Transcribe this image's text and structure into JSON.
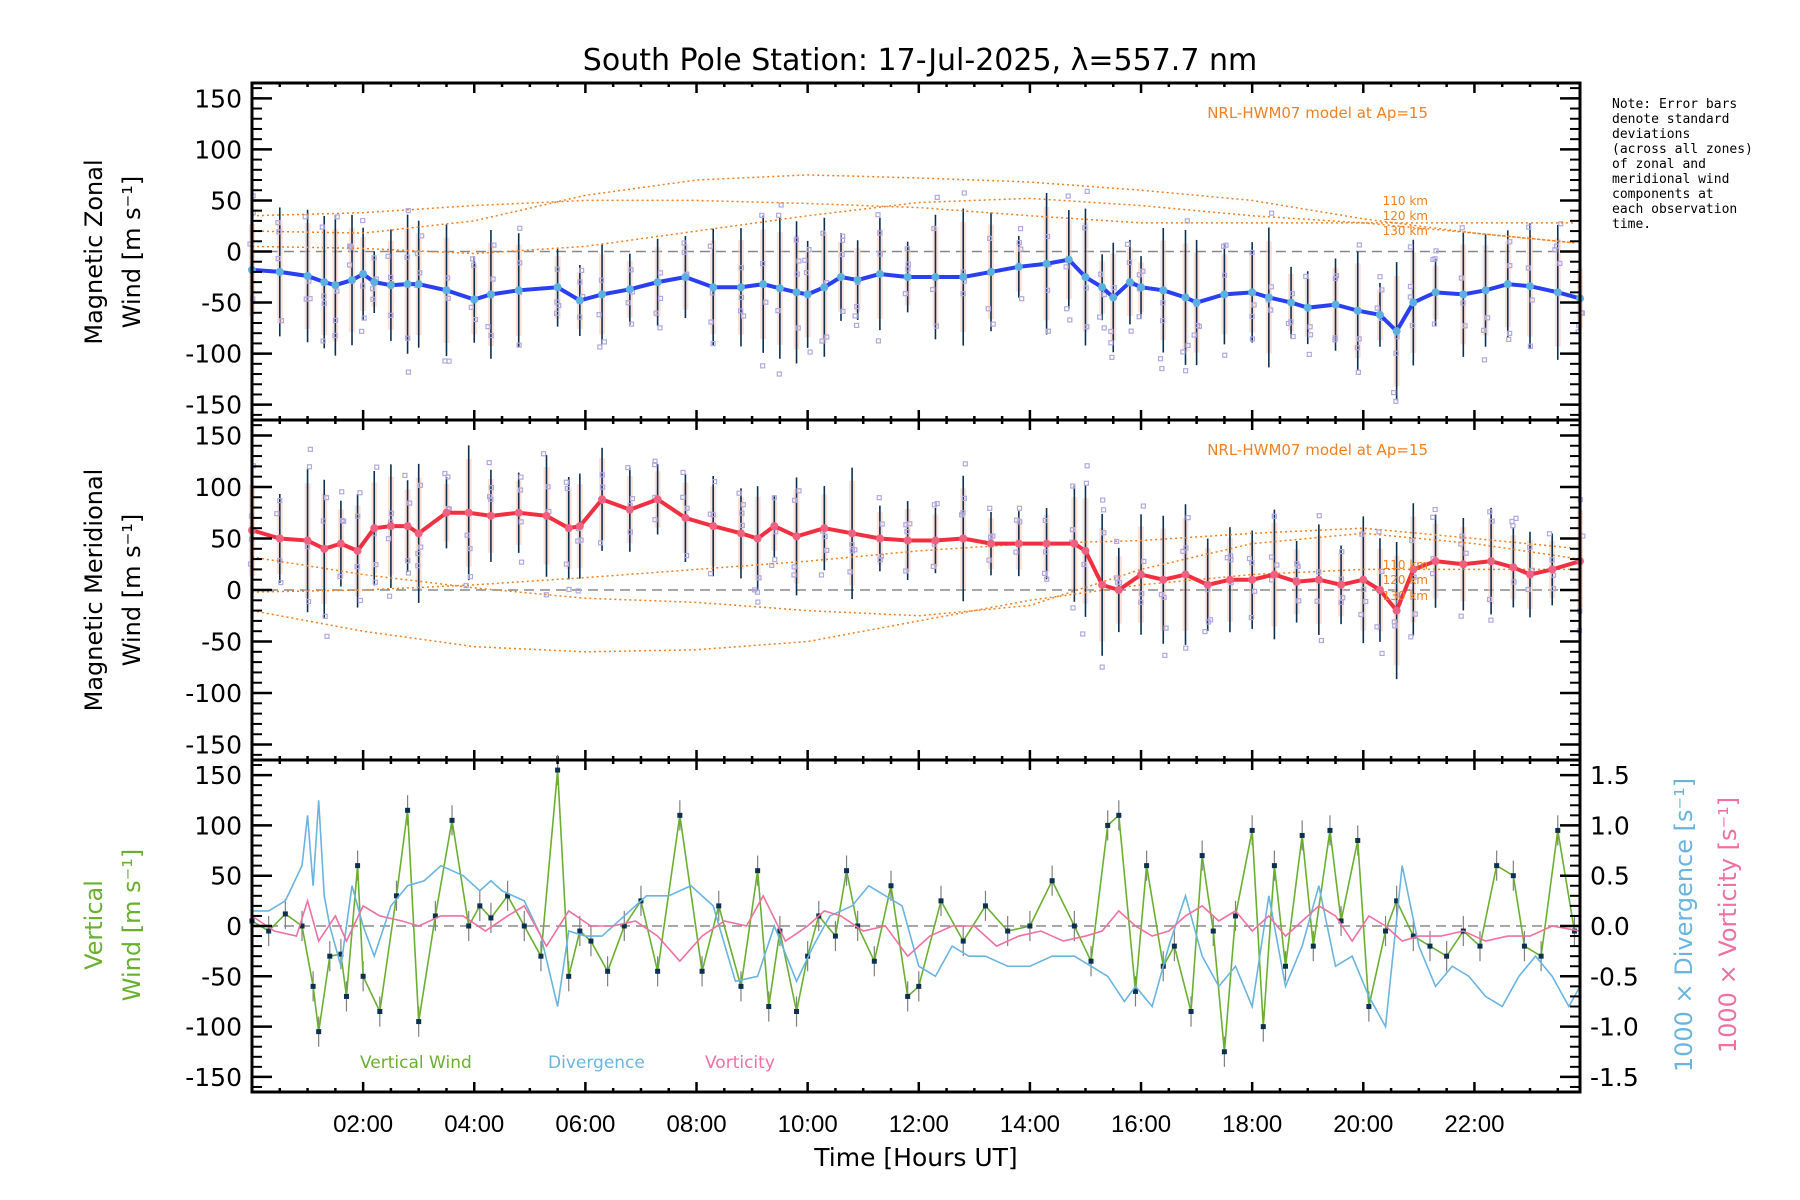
{
  "chart_data": [
    {
      "id": "zonal",
      "type": "line",
      "title": "South Pole Station: 17-Jul-2025, λ=557.7 nm",
      "ylabel_line1": "Magnetic Zonal",
      "ylabel_line2": "Wind [m s⁻¹]",
      "ylim": [
        -165,
        165
      ],
      "yticks": [
        -150,
        -100,
        -50,
        0,
        50,
        100,
        150
      ],
      "xlim": [
        0,
        23.9
      ],
      "annotation": "NRL-HWM07 model at Ap=15",
      "altitude_labels": [
        "110 km",
        "120 km",
        "130 km"
      ],
      "series": [
        {
          "name": "Mean zonal wind",
          "color": "#2a3ff0",
          "x": [
            0.0,
            0.5,
            1.0,
            1.3,
            1.5,
            1.8,
            2.0,
            2.2,
            2.5,
            2.8,
            3.0,
            3.5,
            4.0,
            4.3,
            4.8,
            5.5,
            5.9,
            6.3,
            6.8,
            7.3,
            7.8,
            8.3,
            8.8,
            9.2,
            9.5,
            9.8,
            10.0,
            10.3,
            10.6,
            10.9,
            11.3,
            11.8,
            12.3,
            12.8,
            13.3,
            13.8,
            14.3,
            14.7,
            15.0,
            15.3,
            15.5,
            15.8,
            16.0,
            16.4,
            16.8,
            17.0,
            17.5,
            18.0,
            18.3,
            18.7,
            19.0,
            19.5,
            19.9,
            20.3,
            20.6,
            20.9,
            21.3,
            21.8,
            22.2,
            22.6,
            23.0,
            23.5,
            23.9
          ],
          "y": [
            -18,
            -20,
            -24,
            -30,
            -33,
            -28,
            -22,
            -30,
            -33,
            -32,
            -32,
            -38,
            -47,
            -42,
            -38,
            -35,
            -48,
            -42,
            -37,
            -30,
            -25,
            -35,
            -35,
            -32,
            -36,
            -40,
            -42,
            -35,
            -25,
            -28,
            -22,
            -25,
            -25,
            -25,
            -20,
            -15,
            -12,
            -8,
            -25,
            -35,
            -45,
            -30,
            -35,
            -38,
            -45,
            -50,
            -42,
            -40,
            -45,
            -50,
            -55,
            -52,
            -58,
            -62,
            -78,
            -50,
            -40,
            -42,
            -38,
            -32,
            -34,
            -40,
            -46
          ]
        },
        {
          "name": "HWM07 110 km",
          "color": "#f08020",
          "x": [
            0,
            2,
            4,
            6,
            8,
            10,
            12,
            14,
            16,
            18,
            20,
            22,
            23.9
          ],
          "y": [
            35,
            38,
            45,
            50,
            50,
            47,
            43,
            35,
            28,
            28,
            28,
            28,
            28
          ]
        },
        {
          "name": "HWM07 120 km",
          "color": "#f08020",
          "x": [
            0,
            2,
            4,
            6,
            8,
            10,
            12,
            14,
            16,
            18,
            20,
            22,
            23.9
          ],
          "y": [
            20,
            18,
            30,
            55,
            70,
            75,
            72,
            68,
            60,
            50,
            32,
            18,
            8
          ]
        },
        {
          "name": "HWM07 130 km",
          "color": "#f08020",
          "x": [
            0,
            2,
            4,
            6,
            8,
            10,
            12,
            14,
            16,
            18,
            20,
            22,
            23.9
          ],
          "y": [
            5,
            3,
            -2,
            5,
            20,
            35,
            48,
            52,
            45,
            35,
            28,
            18,
            8
          ]
        }
      ]
    },
    {
      "id": "meridional",
      "type": "line",
      "ylabel_line1": "Magnetic Meridional",
      "ylabel_line2": "Wind [m s⁻¹]",
      "ylim": [
        -165,
        165
      ],
      "yticks": [
        -150,
        -100,
        -50,
        0,
        50,
        100,
        150
      ],
      "xlim": [
        0,
        23.9
      ],
      "annotation": "NRL-HWM07 model at Ap=15",
      "altitude_labels": [
        "110 km",
        "120 km",
        "130 km"
      ],
      "series": [
        {
          "name": "Mean meridional wind",
          "color": "#f03040",
          "x": [
            0.0,
            0.5,
            1.0,
            1.3,
            1.6,
            1.9,
            2.2,
            2.5,
            2.8,
            3.0,
            3.5,
            3.9,
            4.3,
            4.8,
            5.3,
            5.7,
            5.9,
            6.3,
            6.8,
            7.3,
            7.8,
            8.3,
            8.8,
            9.1,
            9.4,
            9.8,
            10.3,
            10.8,
            11.3,
            11.8,
            12.3,
            12.8,
            13.3,
            13.8,
            14.3,
            14.8,
            15.0,
            15.3,
            15.6,
            16.0,
            16.4,
            16.8,
            17.2,
            17.6,
            18.0,
            18.4,
            18.8,
            19.2,
            19.6,
            20.0,
            20.3,
            20.6,
            20.9,
            21.3,
            21.8,
            22.3,
            22.7,
            23.0,
            23.4,
            23.9
          ],
          "y": [
            58,
            50,
            48,
            40,
            45,
            38,
            60,
            62,
            62,
            55,
            75,
            75,
            72,
            75,
            72,
            60,
            62,
            88,
            78,
            88,
            70,
            62,
            55,
            50,
            62,
            52,
            60,
            55,
            50,
            48,
            48,
            50,
            45,
            45,
            45,
            45,
            38,
            5,
            0,
            15,
            10,
            15,
            5,
            10,
            10,
            15,
            8,
            10,
            5,
            10,
            0,
            -20,
            20,
            28,
            25,
            28,
            22,
            15,
            20,
            28
          ]
        },
        {
          "name": "HWM07 110 km",
          "color": "#f08020",
          "x": [
            0,
            2,
            4,
            6,
            8,
            10,
            12,
            14,
            16,
            18,
            20,
            22,
            23.9
          ],
          "y": [
            32,
            15,
            2,
            -8,
            -12,
            -20,
            -25,
            -15,
            20,
            45,
            55,
            45,
            30
          ]
        },
        {
          "name": "HWM07 120 km",
          "color": "#f08020",
          "x": [
            0,
            2,
            4,
            6,
            8,
            10,
            12,
            14,
            16,
            18,
            20,
            22,
            23.9
          ],
          "y": [
            -2,
            0,
            5,
            12,
            20,
            28,
            38,
            45,
            48,
            55,
            60,
            50,
            40
          ]
        },
        {
          "name": "HWM07 130 km",
          "color": "#f08020",
          "x": [
            0,
            2,
            4,
            6,
            8,
            10,
            12,
            14,
            16,
            18,
            20,
            22,
            23.9
          ],
          "y": [
            -20,
            -40,
            -55,
            -60,
            -58,
            -50,
            -30,
            -10,
            5,
            15,
            20,
            20,
            20
          ]
        }
      ]
    },
    {
      "id": "vertical",
      "type": "line",
      "ylabel_line1": "Vertical",
      "ylabel_line2": "Wind [m s⁻¹]",
      "ylabel_right_1": "1000 × Divergence [s⁻¹]",
      "ylabel_right_2": "1000 × Vorticity [s⁻¹]",
      "ylim": [
        -165,
        165
      ],
      "yticks": [
        -150,
        -100,
        -50,
        0,
        50,
        100,
        150
      ],
      "ylim_right": [
        -1.65,
        1.65
      ],
      "yticks_right": [
        -1.5,
        -1.0,
        -0.5,
        0.0,
        0.5,
        1.0,
        1.5
      ],
      "xlim": [
        0,
        23.9
      ],
      "xticks": [
        "02:00",
        "04:00",
        "06:00",
        "08:00",
        "10:00",
        "12:00",
        "14:00",
        "16:00",
        "18:00",
        "20:00",
        "22:00"
      ],
      "xtick_values": [
        2,
        4,
        6,
        8,
        10,
        12,
        14,
        16,
        18,
        20,
        22
      ],
      "xlabel": "Time [Hours UT]",
      "legend": [
        "Vertical Wind",
        "Divergence",
        "Vorticity"
      ],
      "series": [
        {
          "name": "Vertical Wind",
          "color": "#6ab030",
          "axis": "left",
          "x": [
            0.0,
            0.3,
            0.6,
            0.9,
            1.1,
            1.2,
            1.4,
            1.6,
            1.7,
            1.9,
            2.0,
            2.3,
            2.6,
            2.8,
            3.0,
            3.3,
            3.6,
            3.9,
            4.1,
            4.3,
            4.6,
            4.9,
            5.2,
            5.5,
            5.7,
            5.9,
            6.1,
            6.4,
            6.7,
            7.0,
            7.3,
            7.7,
            8.1,
            8.4,
            8.8,
            9.1,
            9.3,
            9.5,
            9.8,
            10.0,
            10.2,
            10.5,
            10.7,
            10.9,
            11.2,
            11.5,
            11.8,
            12.0,
            12.4,
            12.8,
            13.2,
            13.6,
            14.0,
            14.4,
            14.8,
            15.1,
            15.4,
            15.6,
            15.9,
            16.1,
            16.4,
            16.6,
            16.9,
            17.1,
            17.3,
            17.5,
            17.7,
            18.0,
            18.2,
            18.4,
            18.6,
            18.9,
            19.1,
            19.4,
            19.6,
            19.9,
            20.1,
            20.4,
            20.6,
            20.9,
            21.2,
            21.5,
            21.8,
            22.1,
            22.4,
            22.7,
            22.9,
            23.2,
            23.5,
            23.8
          ],
          "y": [
            5,
            -5,
            12,
            0,
            -60,
            -105,
            -30,
            -28,
            -70,
            60,
            -50,
            -85,
            30,
            115,
            -95,
            10,
            105,
            0,
            20,
            8,
            30,
            0,
            -30,
            155,
            -50,
            -5,
            -15,
            -45,
            0,
            25,
            -45,
            110,
            -45,
            20,
            -60,
            55,
            -80,
            -5,
            -85,
            -30,
            10,
            -10,
            55,
            0,
            -35,
            40,
            -70,
            -60,
            25,
            -15,
            20,
            -5,
            0,
            45,
            0,
            -35,
            100,
            110,
            -65,
            60,
            -40,
            -20,
            -85,
            70,
            -5,
            -125,
            10,
            95,
            -100,
            60,
            -40,
            90,
            -20,
            95,
            5,
            85,
            -80,
            -5,
            25,
            -10,
            -20,
            -30,
            -5,
            -20,
            60,
            50,
            -20,
            -30,
            95,
            -5
          ]
        },
        {
          "name": "Divergence",
          "color": "#6ab4e0",
          "axis": "right",
          "x": [
            0.0,
            0.3,
            0.6,
            0.9,
            1.0,
            1.1,
            1.2,
            1.3,
            1.4,
            1.6,
            1.8,
            2.0,
            2.2,
            2.5,
            2.8,
            3.1,
            3.4,
            3.8,
            4.1,
            4.3,
            4.5,
            4.9,
            5.2,
            5.5,
            5.7,
            6.0,
            6.3,
            6.7,
            7.1,
            7.5,
            7.9,
            8.3,
            8.7,
            9.1,
            9.4,
            9.8,
            10.1,
            10.4,
            10.8,
            11.1,
            11.4,
            11.7,
            12.0,
            12.3,
            12.6,
            12.9,
            13.2,
            13.6,
            14.0,
            14.4,
            14.8,
            15.1,
            15.4,
            15.7,
            15.9,
            16.2,
            16.5,
            16.8,
            17.1,
            17.4,
            17.7,
            18.0,
            18.3,
            18.6,
            18.9,
            19.2,
            19.5,
            19.8,
            20.1,
            20.4,
            20.7,
            21.0,
            21.3,
            21.6,
            21.9,
            22.2,
            22.5,
            22.8,
            23.1,
            23.4,
            23.7,
            23.9
          ],
          "y": [
            0.15,
            0.15,
            0.25,
            0.6,
            1.1,
            0.4,
            1.25,
            0.3,
            0.0,
            -0.4,
            0.4,
            0.0,
            -0.3,
            0.2,
            0.4,
            0.45,
            0.6,
            0.5,
            0.35,
            0.45,
            0.35,
            0.25,
            -0.1,
            -0.8,
            -0.05,
            -0.1,
            -0.1,
            0.1,
            0.3,
            0.3,
            0.4,
            0.2,
            -0.55,
            -0.5,
            0.0,
            -0.55,
            -0.2,
            0.1,
            0.2,
            0.4,
            0.3,
            0.2,
            -0.4,
            -0.5,
            -0.2,
            -0.3,
            -0.3,
            -0.4,
            -0.4,
            -0.3,
            -0.3,
            -0.4,
            -0.5,
            -0.75,
            -0.6,
            -0.8,
            -0.2,
            0.3,
            -0.3,
            -0.6,
            -0.4,
            -0.8,
            0.3,
            -0.6,
            -0.2,
            0.4,
            -0.4,
            -0.3,
            -0.7,
            -1.0,
            0.6,
            -0.2,
            -0.6,
            -0.4,
            -0.5,
            -0.7,
            -0.8,
            -0.5,
            -0.3,
            -0.5,
            -0.8,
            -0.6
          ]
        },
        {
          "name": "Vorticity",
          "color": "#f070a0",
          "axis": "right",
          "x": [
            0.0,
            0.4,
            0.8,
            1.0,
            1.2,
            1.5,
            1.7,
            2.0,
            2.3,
            2.7,
            3.0,
            3.4,
            3.8,
            4.2,
            4.6,
            4.9,
            5.3,
            5.7,
            6.1,
            6.5,
            6.9,
            7.3,
            7.7,
            8.1,
            8.5,
            8.9,
            9.2,
            9.6,
            10.0,
            10.3,
            10.6,
            11.0,
            11.4,
            11.8,
            12.2,
            12.6,
            13.0,
            13.4,
            13.8,
            14.2,
            14.6,
            15.0,
            15.3,
            15.6,
            15.9,
            16.2,
            16.5,
            16.8,
            17.1,
            17.4,
            17.7,
            18.0,
            18.3,
            18.6,
            18.9,
            19.2,
            19.5,
            19.8,
            20.1,
            20.4,
            20.7,
            21.0,
            21.4,
            21.8,
            22.2,
            22.6,
            23.0,
            23.4,
            23.9
          ],
          "y": [
            0.1,
            -0.05,
            -0.1,
            0.25,
            -0.15,
            0.1,
            -0.15,
            0.2,
            0.1,
            0.05,
            0.0,
            0.1,
            0.1,
            -0.05,
            0.1,
            0.2,
            -0.2,
            0.15,
            0.0,
            0.0,
            0.05,
            -0.1,
            -0.35,
            -0.1,
            0.05,
            0.0,
            0.3,
            -0.15,
            0.0,
            0.15,
            0.1,
            -0.05,
            0.0,
            -0.3,
            -0.1,
            0.0,
            0.0,
            -0.2,
            -0.1,
            -0.05,
            -0.15,
            -0.1,
            -0.05,
            0.15,
            0.0,
            -0.1,
            -0.05,
            0.1,
            0.2,
            0.05,
            0.15,
            -0.05,
            0.1,
            -0.1,
            0.05,
            0.2,
            0.1,
            -0.15,
            0.1,
            0.0,
            -0.15,
            -0.1,
            -0.1,
            -0.05,
            -0.15,
            -0.1,
            -0.1,
            0.0,
            -0.05
          ]
        }
      ]
    }
  ],
  "figure": {
    "title": "South Pole Station: 17-Jul-2025, λ=557.7 nm",
    "note": [
      "Note: Error bars",
      "denote standard",
      "deviations",
      "(across all zones)",
      "of zonal and",
      "meridional wind",
      "components at",
      "each observation",
      "time."
    ],
    "colors": {
      "zonal_mean": "#2a3ff0",
      "zonal_points": "#5ab0e0",
      "meridional_mean": "#f03040",
      "meridional_points": "#f06080",
      "model": "#f08020",
      "scatter": "#b0a8e0",
      "error_bar": "#0c3050",
      "vertical": "#6ab030",
      "divergence": "#6ab4e0",
      "vorticity": "#f070a0",
      "zero_line": "#888888"
    }
  }
}
